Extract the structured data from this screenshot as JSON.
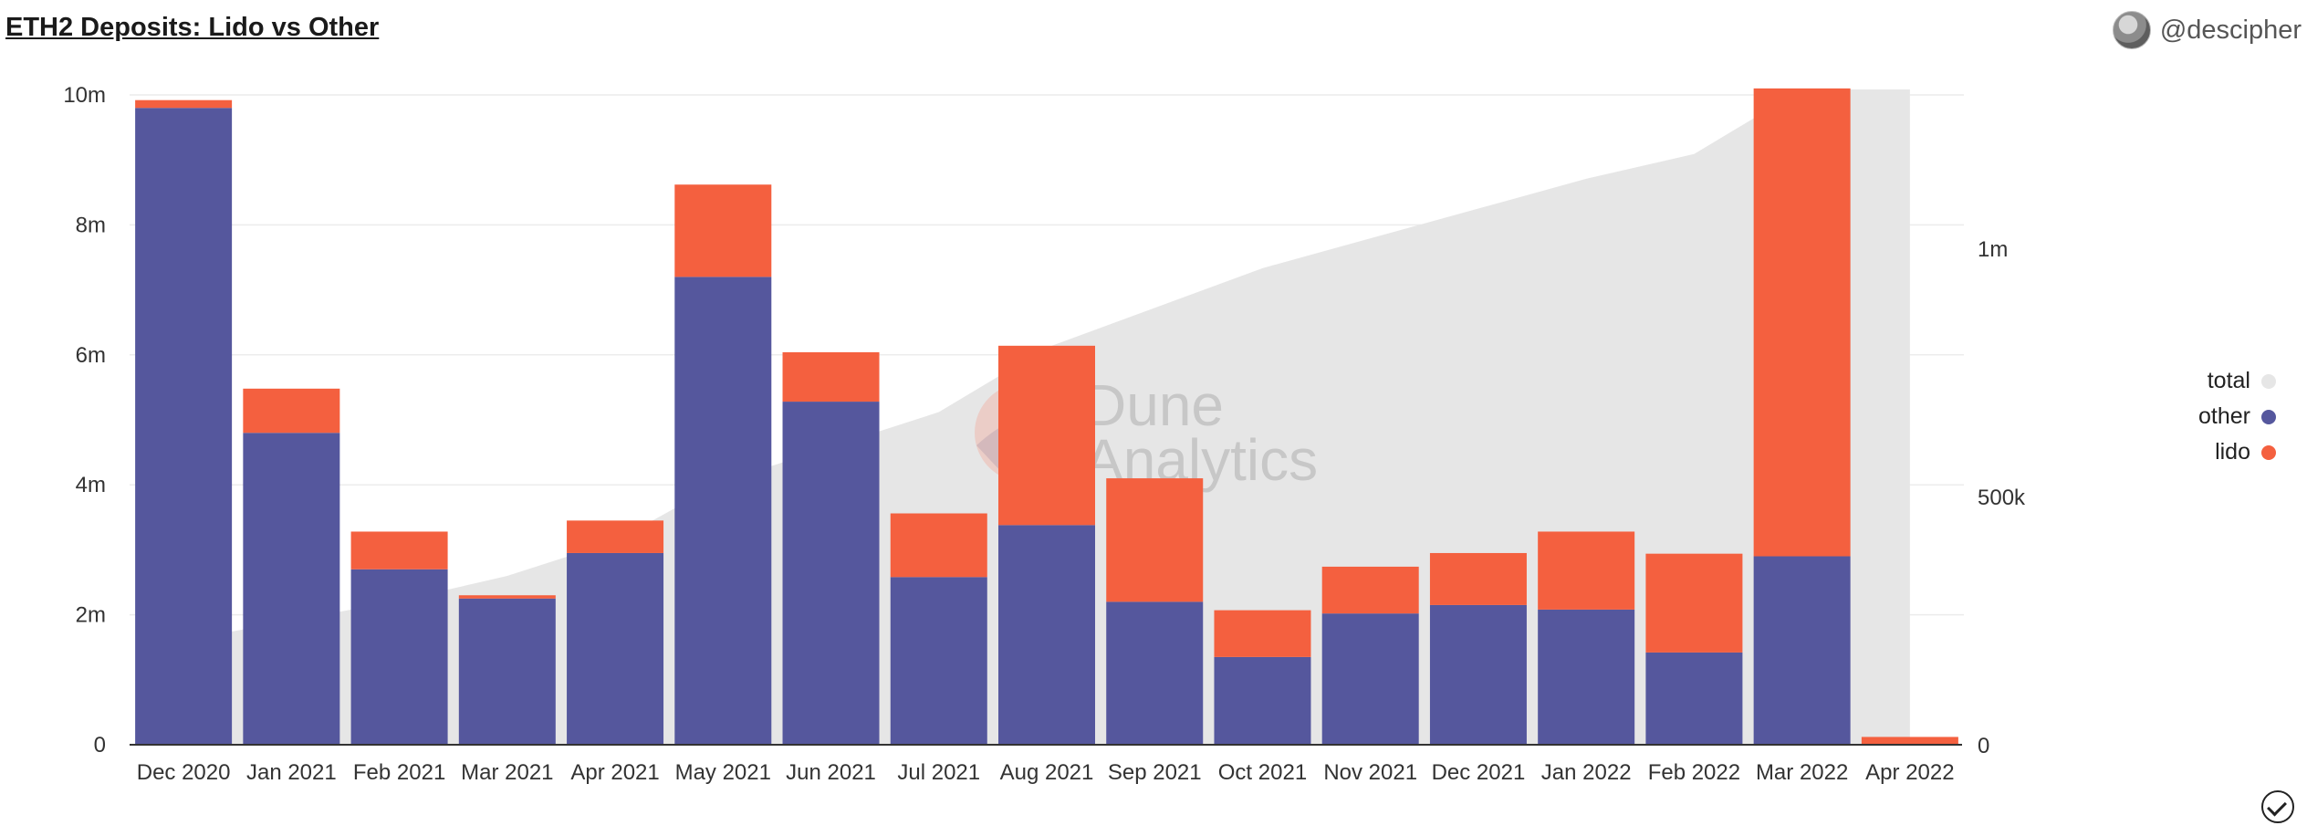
{
  "header": {
    "title": "ETH2 Deposits: Lido vs Other",
    "author": "@descipher"
  },
  "watermark": {
    "line1": "Dune",
    "line2": "Analytics"
  },
  "colors": {
    "other": "#55579d",
    "lido": "#f4603f",
    "total": "#e6e6e6"
  },
  "icons": {
    "avatar": "avatar-icon",
    "status": "check-circle-icon"
  },
  "chart_data": {
    "type": "bar",
    "stacked": true,
    "categories": [
      "Dec 2020",
      "Jan 2021",
      "Feb 2021",
      "Mar 2021",
      "Apr 2021",
      "May 2021",
      "Jun 2021",
      "Jul 2021",
      "Aug 2021",
      "Sep 2021",
      "Oct 2021",
      "Nov 2021",
      "Dec 2021",
      "Jan 2022",
      "Feb 2022",
      "Mar 2022",
      "Apr 2022"
    ],
    "series": [
      {
        "name": "other",
        "axis": "left",
        "type": "bar",
        "values": [
          9800000,
          4800000,
          2700000,
          2250000,
          2950000,
          7200000,
          5280000,
          2580000,
          3380000,
          2200000,
          1350000,
          2020000,
          2150000,
          2080000,
          1420000,
          2900000,
          0
        ]
      },
      {
        "name": "lido",
        "axis": "left",
        "type": "bar",
        "values": [
          120000,
          680000,
          580000,
          50000,
          500000,
          1420000,
          760000,
          980000,
          2760000,
          1900000,
          720000,
          720000,
          800000,
          1200000,
          1520000,
          7200000,
          120000
        ]
      },
      {
        "name": "total",
        "axis": "right",
        "type": "area",
        "values": [
          210000,
          250000,
          290000,
          340000,
          410000,
          530000,
          600000,
          670000,
          800000,
          880000,
          960000,
          1020000,
          1080000,
          1140000,
          1190000,
          1320000,
          1320000
        ]
      }
    ],
    "y_left": {
      "ticks": [
        "0",
        "2m",
        "4m",
        "6m",
        "8m",
        "10m"
      ],
      "min": 0,
      "max": 10000000
    },
    "y_right": {
      "ticks": [
        "0",
        "500k",
        "1m"
      ],
      "min": 0,
      "max": 1320000
    },
    "legend": {
      "placement": "right",
      "items": [
        "total",
        "other",
        "lido"
      ]
    },
    "grid": true
  }
}
